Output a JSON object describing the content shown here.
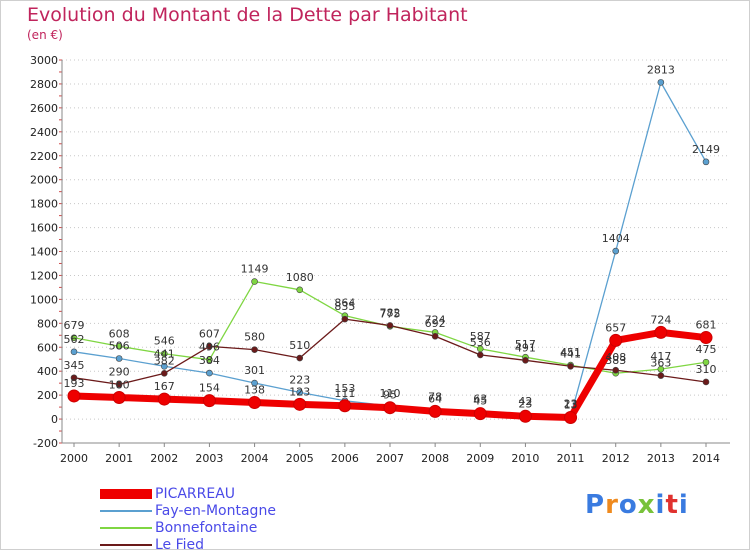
{
  "title": "Evolution du Montant de la Dette par Habitant",
  "subtitle": "(en €)",
  "logo": {
    "text": "Proxiti",
    "colors": [
      "#3a7be0",
      "#ef8a1e",
      "#3a7be0",
      "#78c23a",
      "#3a7be0",
      "#e0312e",
      "#3a7be0"
    ]
  },
  "chart_data": {
    "type": "line",
    "x": [
      "2000",
      "2001",
      "2002",
      "2003",
      "2004",
      "2005",
      "2006",
      "2007",
      "2008",
      "2009",
      "2010",
      "2011",
      "2012",
      "2013",
      "2014"
    ],
    "ylim": [
      -200,
      3000
    ],
    "yticks": [
      "-200",
      "0",
      "200",
      "400",
      "600",
      "800",
      "1000",
      "1200",
      "1400",
      "1600",
      "1800",
      "2000",
      "2200",
      "2400",
      "2600",
      "2800",
      "3000"
    ],
    "grid": "horizontal dotted",
    "legend_position": "bottom-left",
    "series": [
      {
        "name": "Fay-en-Montagne",
        "color": "#5ba0d0",
        "values": [
          562,
          506,
          441,
          384,
          301,
          223,
          153,
          110,
          78,
          63,
          42,
          23,
          1404,
          2813,
          2149
        ],
        "labels": [
          "562",
          "506",
          "441",
          "384",
          "301",
          "223",
          "153",
          "110",
          "78",
          "63",
          "42",
          "23",
          "1404",
          "2813",
          "2149"
        ]
      },
      {
        "name": "Bonnefontaine",
        "color": "#7fd642",
        "values": [
          679,
          608,
          546,
          496,
          1149,
          1080,
          864,
          775,
          724,
          587,
          517,
          451,
          383,
          417,
          475
        ],
        "labels": [
          "679",
          "608",
          "546",
          "496",
          "1149",
          "1080",
          "864",
          "775",
          "724",
          "587",
          "517",
          "451",
          "383",
          "417",
          "475"
        ]
      },
      {
        "name": "Le Fied",
        "color": "#6b1a1a",
        "values": [
          345,
          290,
          382,
          607,
          580,
          510,
          835,
          782,
          692,
          536,
          491,
          441,
          408,
          363,
          310
        ],
        "labels": [
          "345",
          "290",
          "382",
          "607",
          "580",
          "510",
          "835",
          "782",
          "692",
          "536",
          "491",
          "441",
          "408",
          "363",
          "310"
        ]
      },
      {
        "name": "PICARREAU",
        "color": "#ee0000",
        "values": [
          193,
          180,
          167,
          154,
          138,
          123,
          111,
          95,
          64,
          45,
          23,
          13,
          657,
          724,
          681
        ],
        "labels": [
          "193",
          "180",
          "167",
          "154",
          "138",
          "123",
          "111",
          "95",
          "64",
          "45",
          "23",
          "13",
          "657",
          "724",
          "681"
        ]
      }
    ]
  },
  "legend": [
    {
      "name": "PICARREAU",
      "color": "#ee0000"
    },
    {
      "name": "Fay-en-Montagne",
      "color": "#5ba0d0"
    },
    {
      "name": "Bonnefontaine",
      "color": "#7fd642"
    },
    {
      "name": "Le Fied",
      "color": "#6b1a1a"
    }
  ]
}
